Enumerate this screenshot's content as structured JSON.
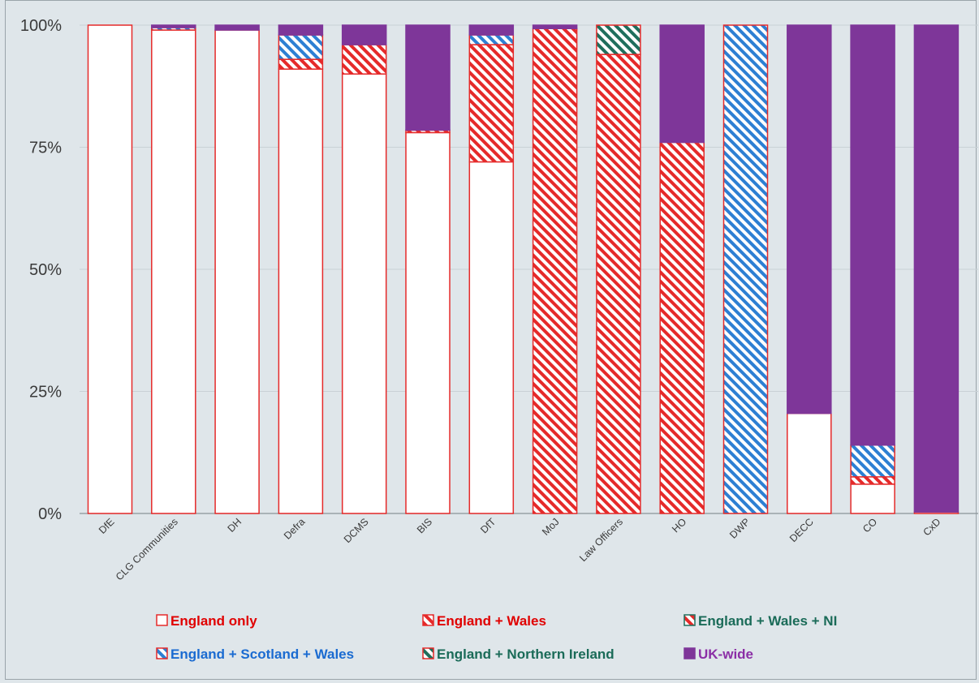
{
  "chart_data": {
    "type": "bar",
    "stacked": true,
    "percent": true,
    "categories": [
      "DfE",
      "CLG Communities",
      "DH",
      "Defra",
      "DCMS",
      "BIS",
      "DfT",
      "MoJ",
      "Law Officers",
      "HO",
      "DWP",
      "DECC",
      "CO",
      "CxD"
    ],
    "series": [
      {
        "name": "England only",
        "color": "#ffffff",
        "edge": "#e52a2a",
        "pattern": "none",
        "text_color": "#e00000",
        "values": [
          100,
          99,
          99,
          91,
          90,
          78,
          72,
          0,
          0,
          0,
          0,
          20.5,
          6,
          0.3
        ]
      },
      {
        "name": "England + Wales",
        "color": "#e52a2a",
        "edge": "#e52a2a",
        "pattern": "hatch",
        "text_color": "#e00000",
        "values": [
          0,
          0,
          0,
          2,
          6,
          0.5,
          24,
          99.3,
          94,
          76,
          0,
          0,
          1.5,
          0
        ]
      },
      {
        "name": "England + Wales + NI",
        "color": "#e52a2a",
        "edge": "#1f6e5c",
        "pattern": "hatch",
        "text_color": "#1a6b58",
        "values": [
          0,
          0,
          0,
          0,
          0,
          0,
          0,
          0,
          0,
          0,
          0,
          0,
          0,
          0
        ]
      },
      {
        "name": "England + Scotland + Wales",
        "color": "#2d7fd3",
        "edge": "#e52a2a",
        "pattern": "hatch",
        "text_color": "#1a6bd1",
        "values": [
          0,
          0.5,
          0,
          5,
          0,
          0,
          2,
          0,
          0,
          0,
          100,
          0,
          6.5,
          0
        ]
      },
      {
        "name": "England + Northern Ireland",
        "color": "#1f6e5c",
        "edge": "#e52a2a",
        "pattern": "hatch",
        "text_color": "#1a6b58",
        "values": [
          0,
          0,
          0,
          0,
          0,
          0,
          0,
          0,
          6,
          0,
          0,
          0,
          0,
          0
        ]
      },
      {
        "name": "UK-wide",
        "color": "#7e3699",
        "edge": "#7e3699",
        "pattern": "solid",
        "text_color": "#8b2fa6",
        "values": [
          0,
          0.5,
          1,
          2,
          4,
          21.5,
          2,
          0.7,
          0,
          24,
          0,
          79.5,
          86,
          99.7
        ]
      }
    ],
    "ylim": [
      0,
      100
    ],
    "yticks": [
      "0%",
      "25%",
      "50%",
      "75%",
      "100%"
    ],
    "grid": true,
    "legend_position": "bottom"
  }
}
